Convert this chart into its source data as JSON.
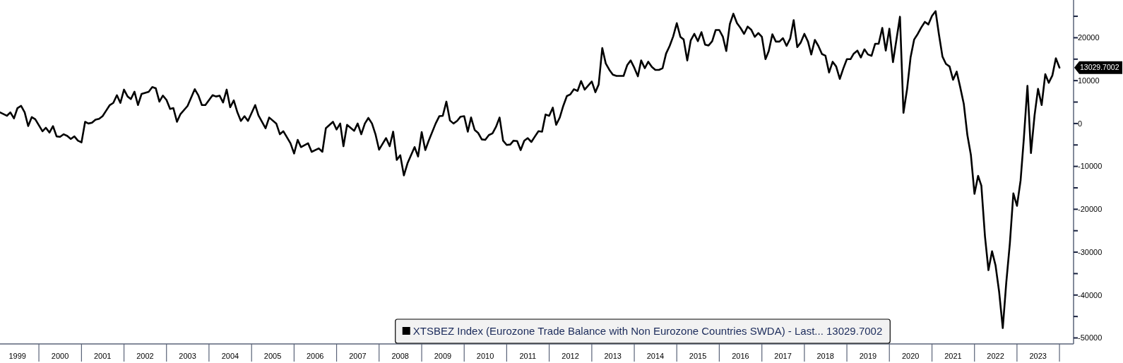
{
  "chart_data": {
    "type": "line",
    "x": [
      "1999-02",
      "1999-04",
      "1999-05",
      "1999-06",
      "1999-07",
      "1999-08",
      "1999-09",
      "1999-10",
      "1999-11",
      "1999-12",
      "2000-02",
      "2000-03",
      "2000-04",
      "2000-05",
      "2000-06",
      "2000-07",
      "2000-08",
      "2000-09",
      "2000-10",
      "2000-11",
      "2000-12",
      "2001-01",
      "2001-02",
      "2001-03",
      "2001-04",
      "2001-05",
      "2001-06",
      "2001-07",
      "2001-08",
      "2001-09",
      "2001-10",
      "2001-11",
      "2001-12",
      "2002-01",
      "2002-02",
      "2002-03",
      "2002-04",
      "2002-05",
      "2002-06",
      "2002-08",
      "2002-09",
      "2002-10",
      "2002-11",
      "2002-12",
      "2003-01",
      "2003-02",
      "2003-03",
      "2003-04",
      "2003-05",
      "2003-07",
      "2003-09",
      "2003-10",
      "2003-11",
      "2003-12",
      "2004-02",
      "2004-03",
      "2004-04",
      "2004-05",
      "2004-06",
      "2004-07",
      "2004-08",
      "2004-09",
      "2004-10",
      "2004-11",
      "2004-12",
      "2005-02",
      "2005-03",
      "2005-05",
      "2005-06",
      "2005-08",
      "2005-09",
      "2005-10",
      "2005-12",
      "2006-01",
      "2006-02",
      "2006-03",
      "2006-05",
      "2006-06",
      "2006-08",
      "2006-09",
      "2006-10",
      "2006-12",
      "2007-01",
      "2007-02",
      "2007-03",
      "2007-04",
      "2007-06",
      "2007-07",
      "2007-08",
      "2007-09",
      "2007-10",
      "2007-11",
      "2007-12",
      "2008-01",
      "2008-02",
      "2008-03",
      "2008-04",
      "2008-05",
      "2008-06",
      "2008-07",
      "2008-08",
      "2008-09",
      "2008-11",
      "2008-12",
      "2009-01",
      "2009-02",
      "2009-03",
      "2009-05",
      "2009-06",
      "2009-07",
      "2009-08",
      "2009-09",
      "2009-10",
      "2009-11",
      "2009-12",
      "2010-01",
      "2010-02",
      "2010-03",
      "2010-04",
      "2010-05",
      "2010-06",
      "2010-07",
      "2010-08",
      "2010-09",
      "2010-10",
      "2010-11",
      "2010-12",
      "2011-01",
      "2011-02",
      "2011-03",
      "2011-04",
      "2011-05",
      "2011-06",
      "2011-07",
      "2011-08",
      "2011-09",
      "2011-10",
      "2011-11",
      "2011-12",
      "2012-01",
      "2012-02",
      "2012-03",
      "2012-04",
      "2012-05",
      "2012-06",
      "2012-07",
      "2012-08",
      "2012-09",
      "2012-10",
      "2012-11",
      "2013-01",
      "2013-02",
      "2013-03",
      "2013-04",
      "2013-05",
      "2013-06",
      "2013-07",
      "2013-08",
      "2013-10",
      "2013-11",
      "2013-12",
      "2014-01",
      "2014-02",
      "2014-03",
      "2014-04",
      "2014-05",
      "2014-06",
      "2014-07",
      "2014-08",
      "2014-09",
      "2014-10",
      "2014-11",
      "2014-12",
      "2015-01",
      "2015-02",
      "2015-03",
      "2015-04",
      "2015-05",
      "2015-06",
      "2015-07",
      "2015-08",
      "2015-09",
      "2015-10",
      "2015-11",
      "2015-12",
      "2016-01",
      "2016-02",
      "2016-03",
      "2016-04",
      "2016-05",
      "2016-06",
      "2016-07",
      "2016-08",
      "2016-09",
      "2016-10",
      "2016-11",
      "2016-12",
      "2017-01",
      "2017-02",
      "2017-03",
      "2017-04",
      "2017-05",
      "2017-06",
      "2017-07",
      "2017-08",
      "2017-09",
      "2017-10",
      "2017-11",
      "2017-12",
      "2018-01",
      "2018-02",
      "2018-03",
      "2018-04",
      "2018-05",
      "2018-06",
      "2018-07",
      "2018-08",
      "2018-09",
      "2018-10",
      "2018-11",
      "2018-12",
      "2019-01",
      "2019-02",
      "2019-03",
      "2019-04",
      "2019-05",
      "2019-06",
      "2019-07",
      "2019-08",
      "2019-09",
      "2019-10",
      "2019-11",
      "2019-12",
      "2020-01",
      "2020-02",
      "2020-04",
      "2020-05",
      "2020-06",
      "2020-07",
      "2020-08",
      "2020-09",
      "2020-10",
      "2020-11",
      "2020-12",
      "2021-01",
      "2021-02",
      "2021-03",
      "2021-04",
      "2021-05",
      "2021-06",
      "2021-07",
      "2021-08",
      "2021-09",
      "2021-10",
      "2021-11",
      "2021-12",
      "2022-01",
      "2022-02",
      "2022-03",
      "2022-04",
      "2022-05",
      "2022-06",
      "2022-07",
      "2022-08",
      "2022-09",
      "2022-10",
      "2022-11",
      "2022-12",
      "2023-01",
      "2023-02",
      "2023-03",
      "2023-04",
      "2023-05",
      "2023-06",
      "2023-07",
      "2023-08",
      "2023-09",
      "2023-10",
      "2023-11",
      "2023-12",
      "2024-01"
    ],
    "series": [
      {
        "name": "XTSBEZ Index (Eurozone Trade Balance with Non Eurozone Countries SWDA) - Last... 13029.7002",
        "color": "#000000",
        "values": [
          2600,
          1800,
          2600,
          1200,
          3600,
          4100,
          2600,
          -600,
          1500,
          1000,
          -1800,
          -1000,
          -2100,
          -600,
          -3000,
          -3100,
          -2500,
          -2900,
          -3600,
          -3000,
          -4000,
          -4400,
          400,
          0,
          200,
          900,
          1100,
          1700,
          3000,
          4300,
          4800,
          6600,
          4800,
          7900,
          6300,
          5700,
          7400,
          4300,
          6900,
          7400,
          8500,
          8200,
          5100,
          6500,
          5500,
          3400,
          3600,
          400,
          2200,
          4100,
          8000,
          6600,
          4300,
          4300,
          6600,
          6300,
          6500,
          4900,
          7900,
          3800,
          5400,
          2600,
          600,
          1700,
          600,
          4300,
          1900,
          -1100,
          1400,
          0,
          -2500,
          -1800,
          -4600,
          -7000,
          -3800,
          -5500,
          -4600,
          -6600,
          -5800,
          -6600,
          -1100,
          400,
          -1400,
          0,
          -5300,
          -300,
          -1700,
          0,
          -2500,
          0,
          1300,
          0,
          -2500,
          -6100,
          -4700,
          -3400,
          -5300,
          -1900,
          -8500,
          -7400,
          -12100,
          -9300,
          -5500,
          -7700,
          -2000,
          -6200,
          -4100,
          0,
          1700,
          1800,
          5100,
          700,
          0,
          600,
          1600,
          1700,
          -1900,
          1400,
          -1500,
          -2200,
          -3700,
          -3800,
          -2700,
          -2300,
          -800,
          1400,
          -4000,
          -5000,
          -4900,
          -4000,
          -4100,
          -6200,
          -4000,
          -3400,
          -4300,
          -3000,
          -1800,
          -1900,
          2100,
          1800,
          3700,
          -300,
          1400,
          4100,
          6400,
          6800,
          8000,
          7600,
          9900,
          7900,
          9800,
          7300,
          9100,
          17600,
          14000,
          12500,
          11400,
          11100,
          11100,
          13600,
          14700,
          13000,
          11000,
          14700,
          12900,
          14400,
          13200,
          12500,
          12500,
          12900,
          16300,
          18100,
          20300,
          23400,
          20200,
          19600,
          14700,
          19400,
          20900,
          19200,
          21300,
          18400,
          18200,
          19200,
          21800,
          21800,
          20200,
          16900,
          23200,
          25600,
          23400,
          22300,
          20900,
          22600,
          21900,
          20200,
          21100,
          20200,
          15000,
          16900,
          20800,
          19100,
          19100,
          19900,
          18100,
          19800,
          24100,
          17800,
          18900,
          20900,
          19100,
          16100,
          19500,
          18100,
          16200,
          15800,
          11900,
          14400,
          13300,
          10400,
          12800,
          15000,
          15000,
          16300,
          17000,
          15400,
          17300,
          16100,
          15800,
          18600,
          18600,
          22300,
          17000,
          22100,
          14300,
          24900,
          2500,
          8000,
          15400,
          19600,
          20900,
          22400,
          23700,
          23100,
          25100,
          26200,
          20900,
          15600,
          13900,
          13300,
          10200,
          12100,
          8400,
          4600,
          -2700,
          -7300,
          -16400,
          -12200,
          -14500,
          -26300,
          -34200,
          -29800,
          -33100,
          -39300,
          -47700,
          -37100,
          -27900,
          -16300,
          -19200,
          -13300,
          -3500,
          8800,
          -6900,
          1900,
          8100,
          4300,
          11500,
          9500,
          11200,
          15200,
          13029.7
        ]
      }
    ],
    "xlim": [
      "1999-02",
      "2024-05"
    ],
    "ylim": [
      -51400,
      28800
    ],
    "xticks": [
      {
        "value": "1999-07",
        "label": "1999"
      },
      {
        "value": "2000-07",
        "label": "2000"
      },
      {
        "value": "2001-07",
        "label": "2001"
      },
      {
        "value": "2002-07",
        "label": "2002"
      },
      {
        "value": "2003-07",
        "label": "2003"
      },
      {
        "value": "2004-07",
        "label": "2004"
      },
      {
        "value": "2005-07",
        "label": "2005"
      },
      {
        "value": "2006-07",
        "label": "2006"
      },
      {
        "value": "2007-07",
        "label": "2007"
      },
      {
        "value": "2008-07",
        "label": "2008"
      },
      {
        "value": "2009-07",
        "label": "2009"
      },
      {
        "value": "2010-07",
        "label": "2010"
      },
      {
        "value": "2011-07",
        "label": "2011"
      },
      {
        "value": "2012-07",
        "label": "2012"
      },
      {
        "value": "2013-07",
        "label": "2013"
      },
      {
        "value": "2014-07",
        "label": "2014"
      },
      {
        "value": "2015-07",
        "label": "2015"
      },
      {
        "value": "2016-07",
        "label": "2016"
      },
      {
        "value": "2017-07",
        "label": "2017"
      },
      {
        "value": "2018-07",
        "label": "2018"
      },
      {
        "value": "2019-07",
        "label": "2019"
      },
      {
        "value": "2020-07",
        "label": "2020"
      },
      {
        "value": "2021-07",
        "label": "2021"
      },
      {
        "value": "2022-07",
        "label": "2022"
      },
      {
        "value": "2023-07",
        "label": "2023"
      },
      {
        "value": "2000",
        "label": null
      },
      {
        "value": "2001",
        "label": null
      },
      {
        "value": "2002",
        "label": null
      },
      {
        "value": "2003",
        "label": null
      },
      {
        "value": "2004",
        "label": null
      },
      {
        "value": "2005",
        "label": null
      },
      {
        "value": "2006",
        "label": null
      },
      {
        "value": "2007",
        "label": null
      },
      {
        "value": "2008",
        "label": null
      },
      {
        "value": "2009",
        "label": null
      },
      {
        "value": "2010",
        "label": null
      },
      {
        "value": "2011",
        "label": null
      },
      {
        "value": "2012",
        "label": null
      },
      {
        "value": "2013",
        "label": null
      },
      {
        "value": "2014",
        "label": null
      },
      {
        "value": "2015",
        "label": null
      },
      {
        "value": "2016",
        "label": null
      },
      {
        "value": "2017",
        "label": null
      },
      {
        "value": "2018",
        "label": null
      },
      {
        "value": "2019",
        "label": null
      },
      {
        "value": "2020",
        "label": null
      },
      {
        "value": "2021",
        "label": null
      },
      {
        "value": "2022",
        "label": null
      },
      {
        "value": "2023",
        "label": null
      },
      {
        "value": "2024",
        "label": null
      }
    ],
    "yticks": [
      -50000,
      -40000,
      -30000,
      -20000,
      -10000,
      0,
      10000,
      20000,
      {
        "value": -45000,
        "label": null
      },
      {
        "value": -35000,
        "label": null
      },
      {
        "value": -25000,
        "label": null
      },
      {
        "value": -15000,
        "label": null
      },
      {
        "value": -5000,
        "label": null
      },
      {
        "value": 5000,
        "label": null
      },
      {
        "value": 15000,
        "label": null
      },
      {
        "value": 25000,
        "label": null
      }
    ],
    "annotations": [
      "13029.7002"
    ],
    "legend": "bottom",
    "grid": false,
    "marker": "none",
    "line_style": "solid"
  }
}
